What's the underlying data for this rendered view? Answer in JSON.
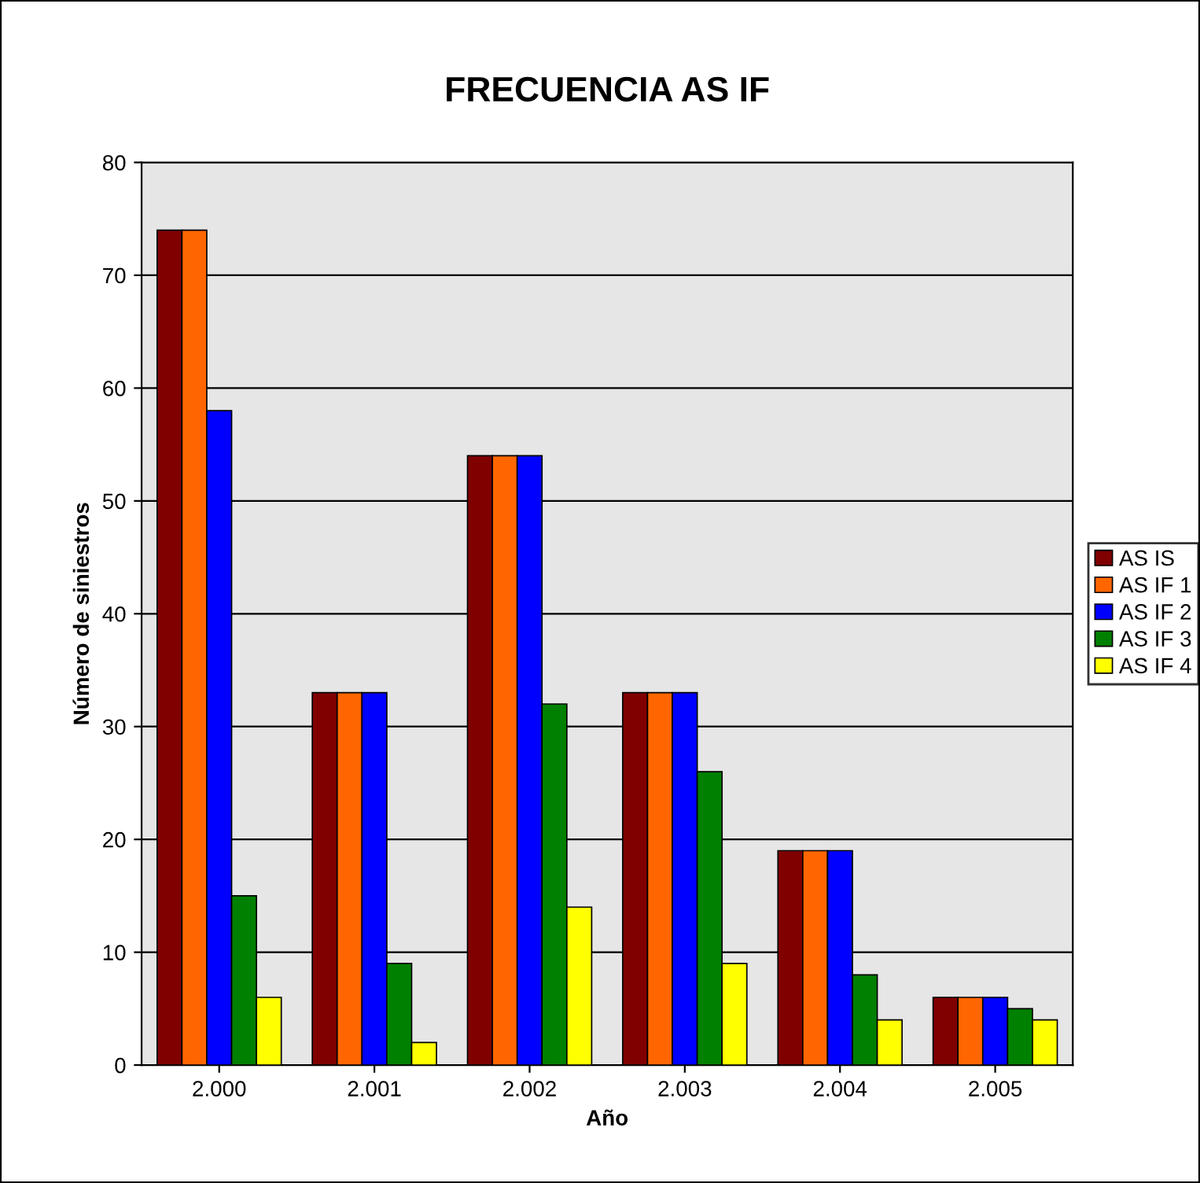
{
  "chart_data": {
    "type": "bar",
    "title": "FRECUENCIA AS IF",
    "xlabel": "Año",
    "ylabel": "Número de siniestros",
    "categories": [
      "2.000",
      "2.001",
      "2.002",
      "2.003",
      "2.004",
      "2.005"
    ],
    "series": [
      {
        "name": "AS IS",
        "color": "#800000",
        "values": [
          74,
          33,
          54,
          33,
          19,
          6
        ]
      },
      {
        "name": "AS IF 1",
        "color": "#ff6600",
        "values": [
          74,
          33,
          54,
          33,
          19,
          6
        ]
      },
      {
        "name": "AS IF 2",
        "color": "#0000ff",
        "values": [
          58,
          33,
          54,
          33,
          19,
          6
        ]
      },
      {
        "name": "AS IF 3",
        "color": "#008000",
        "values": [
          15,
          9,
          32,
          26,
          8,
          5
        ]
      },
      {
        "name": "AS IF 4",
        "color": "#ffff00",
        "values": [
          6,
          2,
          14,
          9,
          4,
          4
        ]
      }
    ],
    "ylim": [
      0,
      80
    ],
    "yticks": [
      0,
      10,
      20,
      30,
      40,
      50,
      60,
      70,
      80
    ],
    "grid": "y",
    "legend": "right"
  }
}
